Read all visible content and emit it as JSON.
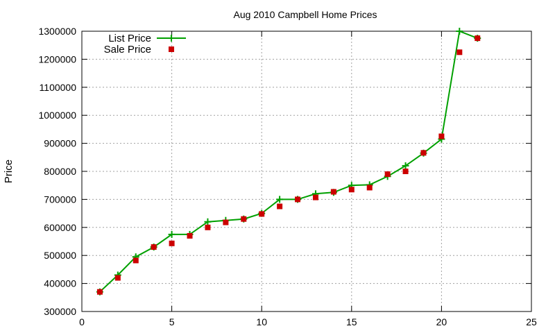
{
  "chart_data": {
    "type": "line",
    "title": "Aug 2010 Campbell Home Prices",
    "xlabel": "",
    "ylabel": "Price",
    "xlim": [
      0,
      25
    ],
    "ylim": [
      300000,
      1300000
    ],
    "x_ticks": [
      0,
      5,
      10,
      15,
      20,
      25
    ],
    "y_ticks": [
      300000,
      400000,
      500000,
      600000,
      700000,
      800000,
      900000,
      1000000,
      1100000,
      1200000,
      1300000
    ],
    "grid": true,
    "legend_position": "top-left",
    "series": [
      {
        "name": "List Price",
        "style": "line-with-plus-markers",
        "color": "#00a000",
        "x": [
          1,
          2,
          3,
          4,
          5,
          6,
          7,
          8,
          9,
          10,
          11,
          12,
          13,
          14,
          15,
          16,
          17,
          18,
          19,
          20,
          21,
          22
        ],
        "y": [
          370000,
          430000,
          495000,
          530000,
          575000,
          575000,
          620000,
          625000,
          630000,
          650000,
          700000,
          700000,
          720000,
          725000,
          750000,
          752000,
          782000,
          820000,
          865000,
          915000,
          1300000,
          1275000
        ]
      },
      {
        "name": "Sale Price",
        "style": "square-markers",
        "color": "#cc0000",
        "x": [
          1,
          2,
          3,
          4,
          5,
          6,
          7,
          8,
          9,
          10,
          11,
          12,
          13,
          14,
          15,
          16,
          17,
          18,
          19,
          20,
          21,
          22
        ],
        "y": [
          370000,
          420000,
          482000,
          530000,
          543000,
          570000,
          600000,
          618000,
          630000,
          648000,
          675000,
          700000,
          707000,
          727000,
          735000,
          742000,
          790000,
          800000,
          866000,
          925000,
          1225000,
          1275000
        ]
      }
    ]
  }
}
